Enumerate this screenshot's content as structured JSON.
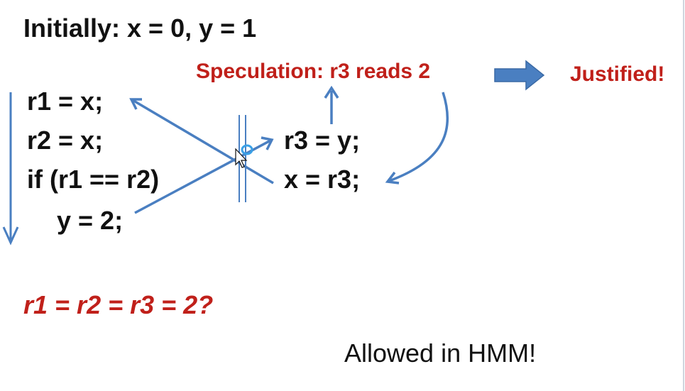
{
  "slide": {
    "title": "Initially:  x = 0, y = 1",
    "thread1": {
      "lines": [
        "r1 = x;",
        "r2 = x;",
        "if (r1 == r2)",
        "y = 2;"
      ]
    },
    "thread2": {
      "lines": [
        "r3 = y;",
        "x = r3;"
      ]
    },
    "speculation": "Speculation: r3 reads 2",
    "justified": "Justified!",
    "question": "r1 = r2 = r3 = 2?",
    "allowed": "Allowed in HMM!"
  },
  "colors": {
    "arrow_blue": "#4a7fc1",
    "accent_red": "#c0201a",
    "text_black": "#111111"
  },
  "icons": {
    "cursor": "mouse-pointer-icon",
    "program_order_arrow": "down-arrow-icon",
    "block_arrow": "right-block-arrow-icon"
  }
}
